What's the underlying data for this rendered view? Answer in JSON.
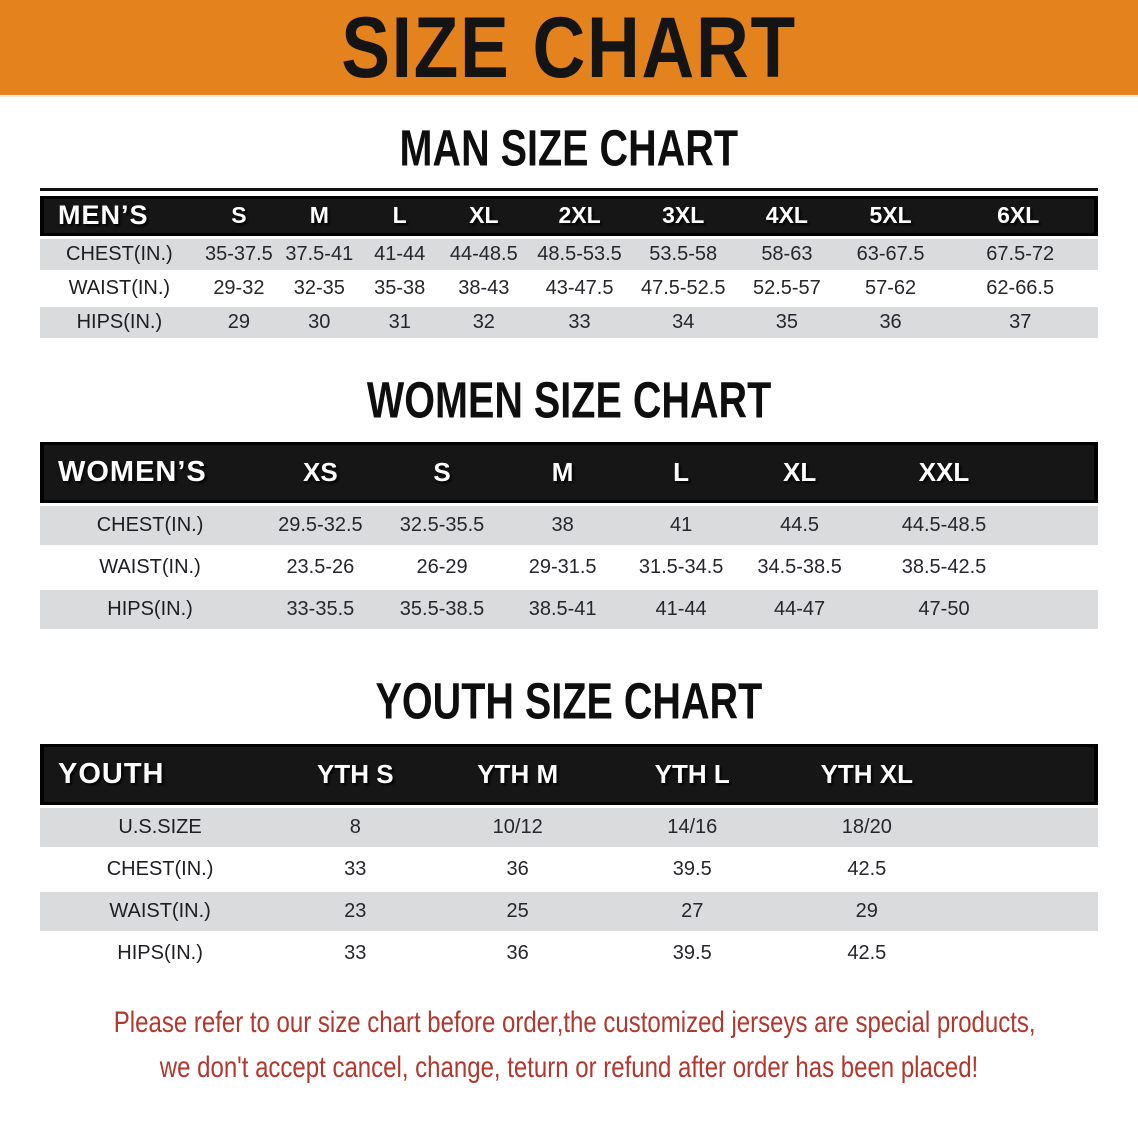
{
  "colors": {
    "banner_bg": "#e4831d",
    "header_bg": "#161616",
    "stripe": "#dadbdd",
    "footer_color": "#b0382e"
  },
  "banner": {
    "title": "SIZE CHART"
  },
  "sections": [
    {
      "heading": "MAN SIZE CHART",
      "table": {
        "header_label": "MEN’S",
        "columns": [
          "S",
          "M",
          "L",
          "XL",
          "2XL",
          "3XL",
          "4XL",
          "5XL",
          "6XL"
        ],
        "rows": [
          {
            "label": "CHEST(IN.)",
            "values": [
              "35-37.5",
              "37.5-41",
              "41-44",
              "44-48.5",
              "48.5-53.5",
              "53.5-58",
              "58-63",
              "63-67.5",
              "67.5-72"
            ]
          },
          {
            "label": "WAIST(IN.)",
            "values": [
              "29-32",
              "32-35",
              "35-38",
              "38-43",
              "43-47.5",
              "47.5-52.5",
              "52.5-57",
              "57-62",
              "62-66.5"
            ]
          },
          {
            "label": "HIPS(IN.)",
            "values": [
              "29",
              "30",
              "31",
              "32",
              "33",
              "34",
              "35",
              "36",
              "37"
            ]
          }
        ]
      }
    },
    {
      "heading": "WOMEN SIZE CHART",
      "table": {
        "header_label": "WOMEN’S",
        "columns": [
          "XS",
          "S",
          "M",
          "L",
          "XL",
          "XXL"
        ],
        "rows": [
          {
            "label": "CHEST(IN.)",
            "values": [
              "29.5-32.5",
              "32.5-35.5",
              "38",
              "41",
              "44.5",
              "44.5-48.5"
            ]
          },
          {
            "label": "WAIST(IN.)",
            "values": [
              "23.5-26",
              "26-29",
              "29-31.5",
              "31.5-34.5",
              "34.5-38.5",
              "38.5-42.5"
            ]
          },
          {
            "label": "HIPS(IN.)",
            "values": [
              "33-35.5",
              "35.5-38.5",
              "38.5-41",
              "41-44",
              "44-47",
              "47-50"
            ]
          }
        ]
      }
    },
    {
      "heading": "YOUTH SIZE CHART",
      "table": {
        "header_label": "YOUTH",
        "columns": [
          "YTH S",
          "YTH M",
          "YTH L",
          "YTH XL"
        ],
        "rows": [
          {
            "label": "U.S.SIZE",
            "values": [
              "8",
              "10/12",
              "14/16",
              "18/20"
            ]
          },
          {
            "label": "CHEST(IN.)",
            "values": [
              "33",
              "36",
              "39.5",
              "42.5"
            ]
          },
          {
            "label": "WAIST(IN.)",
            "values": [
              "23",
              "25",
              "27",
              "29"
            ]
          },
          {
            "label": "HIPS(IN.)",
            "values": [
              "33",
              "36",
              "39.5",
              "42.5"
            ]
          }
        ]
      }
    }
  ],
  "footer": {
    "line1": "Please refer to our size chart before order,the customized jerseys are special products,",
    "line2": "we don't accept cancel, change, teturn or refund after order has been placed!"
  }
}
